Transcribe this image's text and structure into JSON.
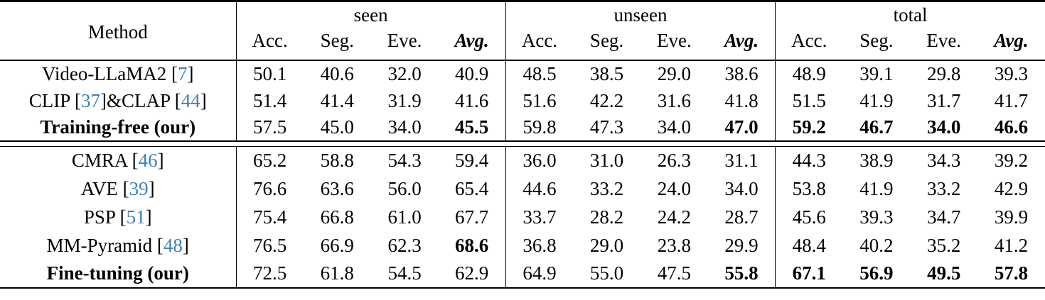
{
  "colors": {
    "citation": "#4080b8",
    "text": "#000000",
    "rule": "#000000",
    "background": "#ffffff"
  },
  "table": {
    "method_header": "Method",
    "groups": [
      {
        "label": "seen",
        "columns": [
          "Acc.",
          "Seg.",
          "Eve.",
          "Avg."
        ]
      },
      {
        "label": "unseen",
        "columns": [
          "Acc.",
          "Seg.",
          "Eve.",
          "Avg."
        ]
      },
      {
        "label": "total",
        "columns": [
          "Acc.",
          "Seg.",
          "Eve.",
          "Avg."
        ]
      }
    ],
    "blocks": [
      {
        "rows": [
          {
            "method": [
              {
                "t": "Video-LLaMA2 ["
              },
              {
                "t": "7",
                "cite": true
              },
              {
                "t": "]"
              }
            ],
            "method_bold": false,
            "values": [
              "50.1",
              "40.6",
              "32.0",
              "40.9",
              "48.5",
              "38.5",
              "29.0",
              "38.6",
              "48.9",
              "39.1",
              "29.8",
              "39.3"
            ],
            "bold": []
          },
          {
            "method": [
              {
                "t": "CLIP ["
              },
              {
                "t": "37",
                "cite": true
              },
              {
                "t": "]&CLAP ["
              },
              {
                "t": "44",
                "cite": true
              },
              {
                "t": "]"
              }
            ],
            "method_bold": false,
            "values": [
              "51.4",
              "41.4",
              "31.9",
              "41.6",
              "51.6",
              "42.2",
              "31.6",
              "41.8",
              "51.5",
              "41.9",
              "31.7",
              "41.7"
            ],
            "bold": []
          },
          {
            "method": [
              {
                "t": "Training-free (our)"
              }
            ],
            "method_bold": true,
            "values": [
              "57.5",
              "45.0",
              "34.0",
              "45.5",
              "59.8",
              "47.3",
              "34.0",
              "47.0",
              "59.2",
              "46.7",
              "34.0",
              "46.6"
            ],
            "bold": [
              3,
              7,
              8,
              9,
              10,
              11
            ]
          }
        ]
      },
      {
        "rows": [
          {
            "method": [
              {
                "t": "CMRA ["
              },
              {
                "t": "46",
                "cite": true
              },
              {
                "t": "]"
              }
            ],
            "method_bold": false,
            "values": [
              "65.2",
              "58.8",
              "54.3",
              "59.4",
              "36.0",
              "31.0",
              "26.3",
              "31.1",
              "44.3",
              "38.9",
              "34.3",
              "39.2"
            ],
            "bold": []
          },
          {
            "method": [
              {
                "t": "AVE ["
              },
              {
                "t": "39",
                "cite": true
              },
              {
                "t": "]"
              }
            ],
            "method_bold": false,
            "values": [
              "76.6",
              "63.6",
              "56.0",
              "65.4",
              "44.6",
              "33.2",
              "24.0",
              "34.0",
              "53.8",
              "41.9",
              "33.2",
              "42.9"
            ],
            "bold": []
          },
          {
            "method": [
              {
                "t": "PSP ["
              },
              {
                "t": "51",
                "cite": true
              },
              {
                "t": "]"
              }
            ],
            "method_bold": false,
            "values": [
              "75.4",
              "66.8",
              "61.0",
              "67.7",
              "33.7",
              "28.2",
              "24.2",
              "28.7",
              "45.6",
              "39.3",
              "34.7",
              "39.9"
            ],
            "bold": []
          },
          {
            "method": [
              {
                "t": "MM-Pyramid ["
              },
              {
                "t": "48",
                "cite": true
              },
              {
                "t": "]"
              }
            ],
            "method_bold": false,
            "values": [
              "76.5",
              "66.9",
              "62.3",
              "68.6",
              "36.8",
              "29.0",
              "23.8",
              "29.9",
              "48.4",
              "40.2",
              "35.2",
              "41.2"
            ],
            "bold": [
              3
            ]
          },
          {
            "method": [
              {
                "t": "Fine-tuning (our)"
              }
            ],
            "method_bold": true,
            "values": [
              "72.5",
              "61.8",
              "54.5",
              "62.9",
              "64.9",
              "55.0",
              "47.5",
              "55.8",
              "67.1",
              "56.9",
              "49.5",
              "57.8"
            ],
            "bold": [
              7,
              8,
              9,
              10,
              11
            ]
          }
        ]
      }
    ]
  }
}
